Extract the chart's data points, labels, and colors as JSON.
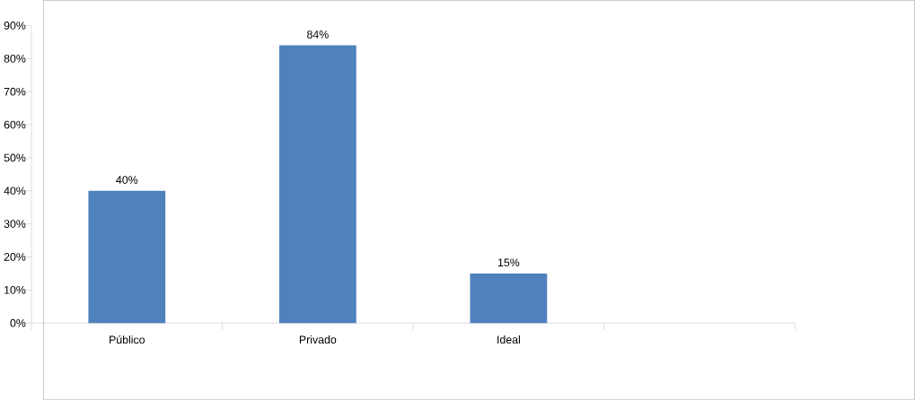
{
  "chart_data": {
    "type": "bar",
    "categories": [
      "Público",
      "Privado",
      "Ideal",
      null
    ],
    "values": [
      40,
      84,
      15,
      null
    ],
    "value_labels": [
      "40%",
      "84%",
      "15%",
      null
    ],
    "color": "#4f81bd",
    "ylim": [
      0,
      90
    ],
    "yticks": [
      {
        "value": 0,
        "label": "0%"
      },
      {
        "value": 10,
        "label": "10%"
      },
      {
        "value": 20,
        "label": "20%"
      },
      {
        "value": 30,
        "label": "30%"
      },
      {
        "value": 40,
        "label": "40%"
      },
      {
        "value": 50,
        "label": "50%"
      },
      {
        "value": 60,
        "label": "60%"
      },
      {
        "value": 70,
        "label": "70%"
      },
      {
        "value": 80,
        "label": "80%"
      },
      {
        "value": 90,
        "label": "90%"
      }
    ],
    "grid": false
  }
}
